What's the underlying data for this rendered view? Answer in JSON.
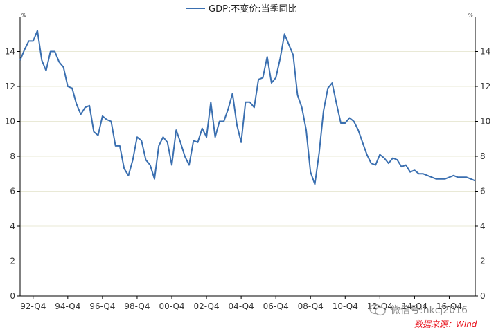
{
  "chart_data": {
    "type": "line",
    "legend": "GDP:不变价:当季同比",
    "legend_placement": "top-center",
    "y_unit_left": "%",
    "y_unit_right": "%",
    "ylim": [
      0,
      16
    ],
    "y_ticks": [
      0,
      2,
      4,
      6,
      8,
      10,
      12,
      14
    ],
    "x_tick_labels": [
      "92-Q4",
      "94-Q4",
      "96-Q4",
      "98-Q4",
      "00-Q4",
      "02-Q4",
      "04-Q4",
      "06-Q4",
      "08-Q4",
      "10-Q4",
      "12-Q4",
      "14-Q4",
      "16-Q4"
    ],
    "grid": "horizontal",
    "line_color": "#3a6fb0",
    "series": [
      {
        "values": [
          13.5,
          14.1,
          14.6,
          14.6,
          15.2,
          13.5,
          12.9,
          14.0,
          14.0,
          13.4,
          13.1,
          12.0,
          11.9,
          11.0,
          10.4,
          10.8,
          10.9,
          9.4,
          9.2,
          10.3,
          10.1,
          10.0,
          8.6,
          8.6,
          7.3,
          6.9,
          7.8,
          9.1,
          8.9,
          7.8,
          7.5,
          6.7,
          8.6,
          9.1,
          8.8,
          7.5,
          9.5,
          8.8,
          8.0,
          7.5,
          8.9,
          8.8,
          9.6,
          9.1,
          11.1,
          9.1,
          10.0,
          10.0,
          10.7,
          11.6,
          9.8,
          8.8,
          11.1,
          11.1,
          10.8,
          12.4,
          12.5,
          13.7,
          12.2,
          12.5,
          13.6,
          15.0,
          14.4,
          13.8,
          11.5,
          10.8,
          9.5,
          7.1,
          6.4,
          8.2,
          10.6,
          11.9,
          12.2,
          11.0,
          9.9,
          9.9,
          10.2,
          10.0,
          9.5,
          8.8,
          8.1,
          7.6,
          7.5,
          8.1,
          7.9,
          7.6,
          7.9,
          7.8,
          7.4,
          7.5,
          7.1,
          7.2,
          7.0,
          7.0,
          6.9,
          6.8,
          6.7,
          6.7,
          6.7,
          6.8,
          6.9,
          6.8,
          6.8,
          6.8,
          6.7,
          6.6
        ]
      }
    ]
  },
  "watermark_text": "微信号:hkcj2016",
  "source_text": "数据来源：Wind"
}
